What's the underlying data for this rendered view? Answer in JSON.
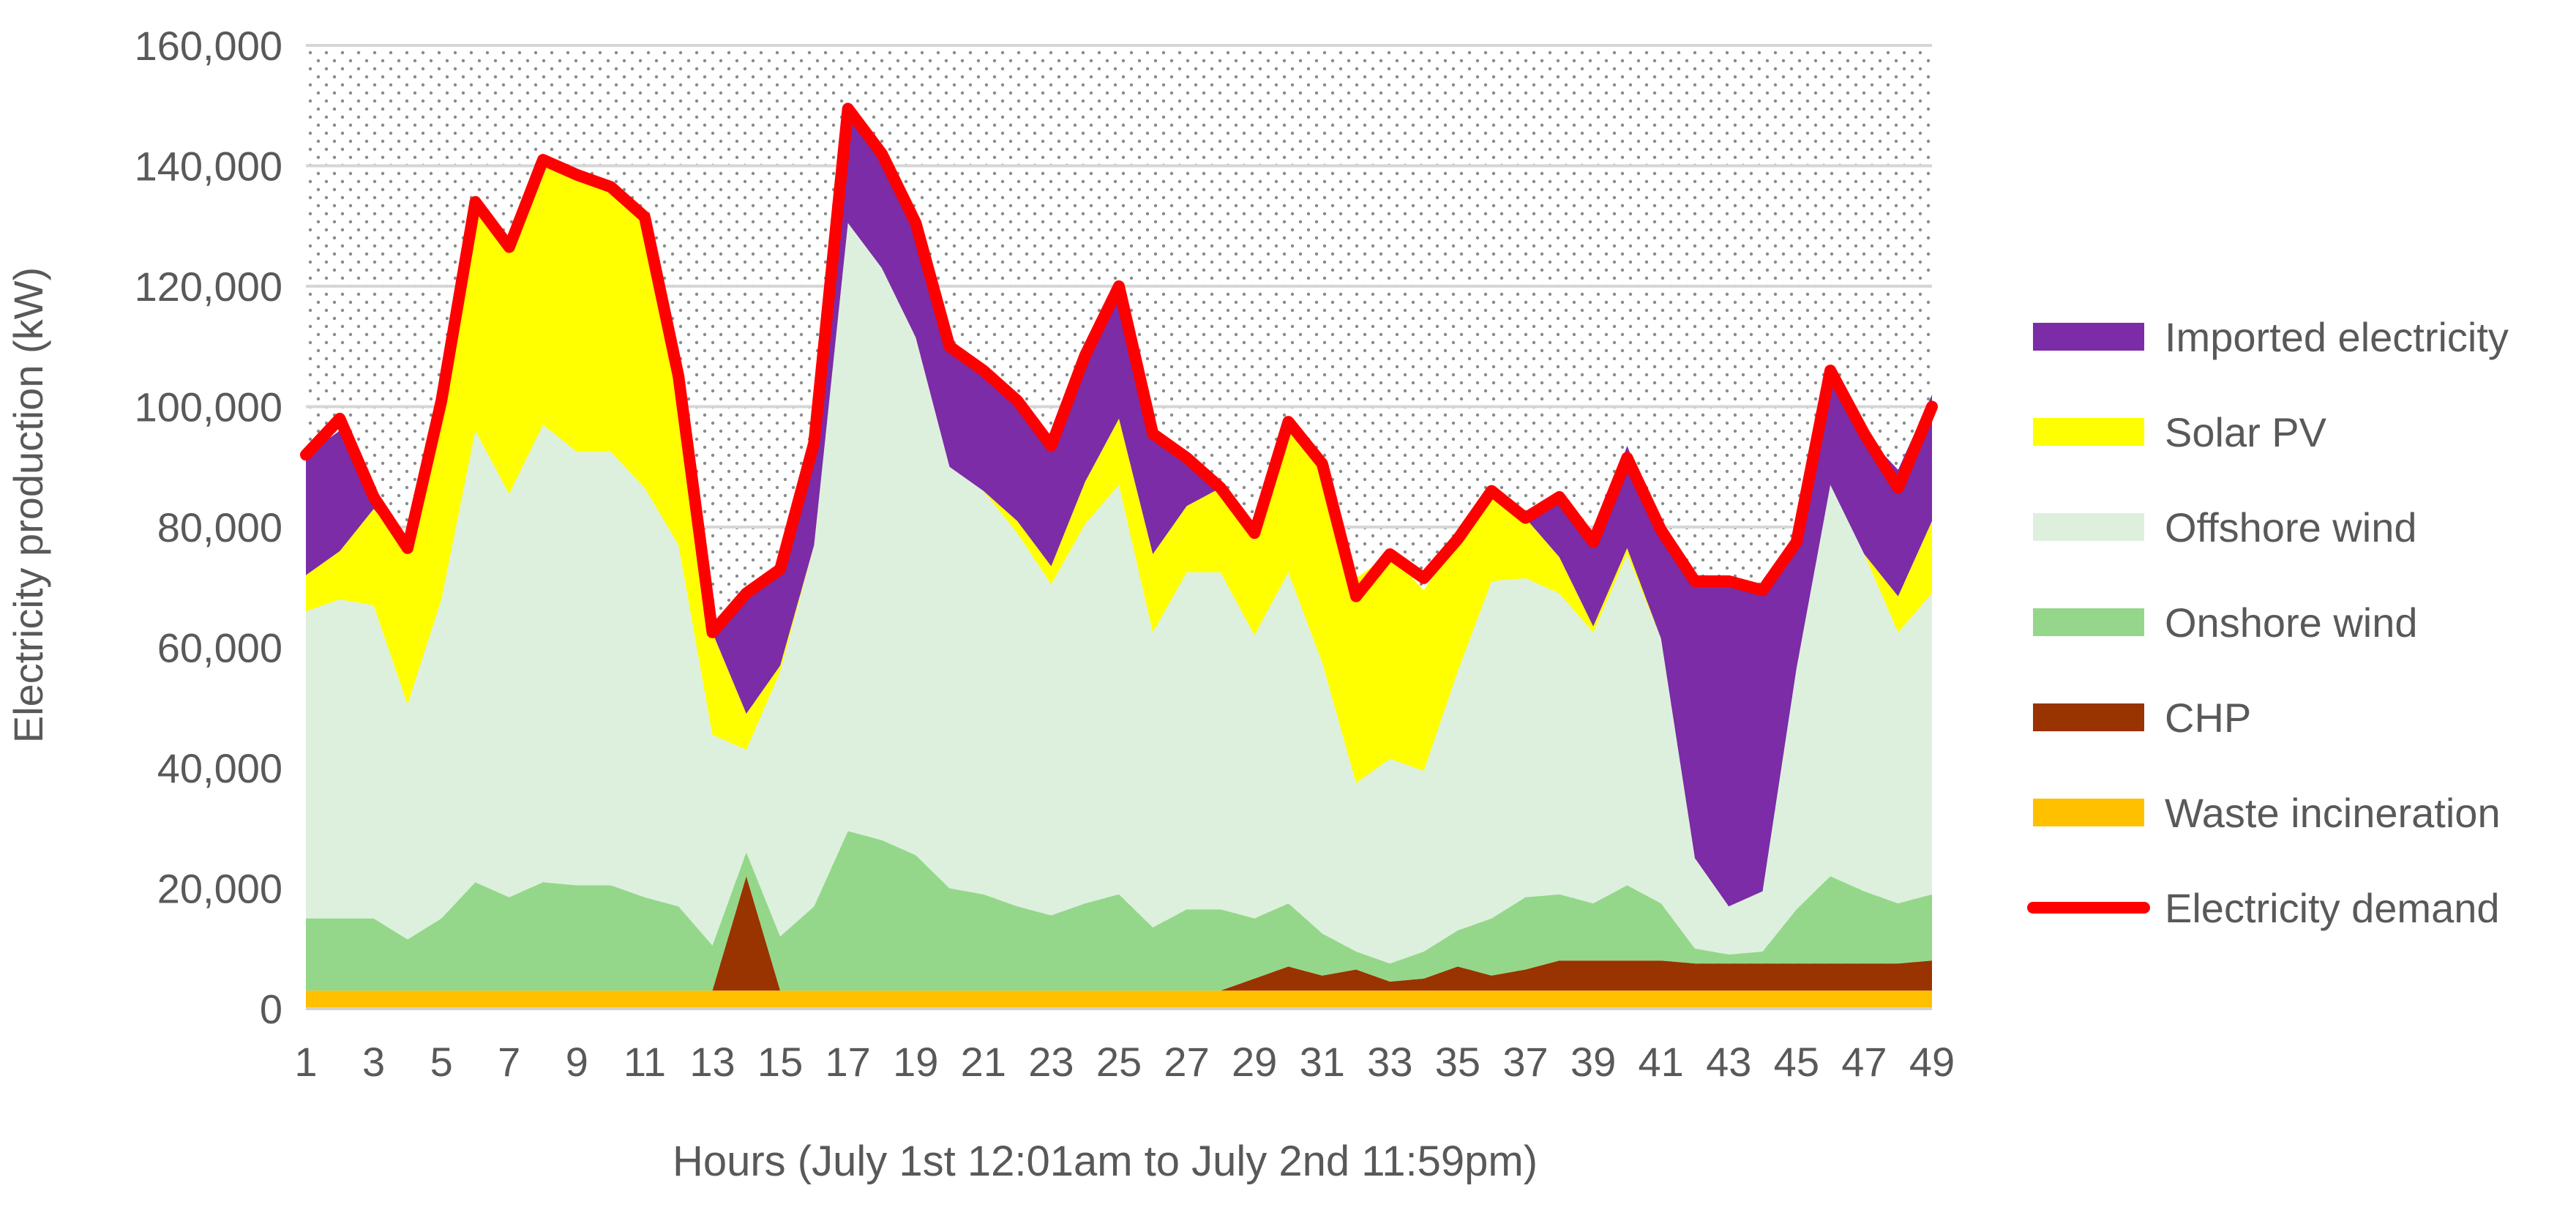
{
  "chart_data": {
    "type": "area",
    "title": "",
    "xlabel": "Hours (July 1st 12:01am to July 2nd 11:59pm)",
    "ylabel": "Electricity production (kW)",
    "ylim": [
      0,
      160000
    ],
    "yticks": [
      "0",
      "20,000",
      "40,000",
      "60,000",
      "80,000",
      "100,000",
      "120,000",
      "140,000",
      "160,000"
    ],
    "xticks": [
      "1",
      "3",
      "5",
      "7",
      "9",
      "11",
      "13",
      "15",
      "17",
      "19",
      "21",
      "23",
      "25",
      "27",
      "29",
      "31",
      "33",
      "35",
      "37",
      "39",
      "41",
      "43",
      "45",
      "47",
      "49"
    ],
    "grid": true,
    "legend_position": "right",
    "x": [
      1,
      2,
      3,
      4,
      5,
      6,
      7,
      8,
      9,
      10,
      11,
      12,
      13,
      14,
      15,
      16,
      17,
      18,
      19,
      20,
      21,
      22,
      23,
      24,
      25,
      26,
      27,
      28,
      29,
      30,
      31,
      32,
      33,
      34,
      35,
      36,
      37,
      38,
      39,
      40,
      41,
      42,
      43,
      44,
      45,
      46,
      47,
      48,
      49
    ],
    "stack_order": [
      "Waste incineration",
      "CHP",
      "Onshore wind",
      "Offshore wind",
      "Solar PV",
      "Imported electricity"
    ],
    "series": [
      {
        "name": "Imported electricity",
        "color": "#7B2CA6",
        "values": [
          20000,
          20000,
          2000,
          0,
          0,
          0,
          0,
          0,
          0,
          0,
          0,
          0,
          0,
          21000,
          16000,
          17000,
          19000,
          19000,
          19000,
          20000,
          20000,
          20000,
          20000,
          21000,
          22000,
          20000,
          8000,
          0,
          0,
          0,
          0,
          0,
          0,
          0,
          0,
          0,
          0,
          11000,
          14000,
          17000,
          18000,
          46000,
          54000,
          50000,
          21000,
          19000,
          20000,
          21000,
          21000
        ]
      },
      {
        "name": "Solar PV",
        "color": "#FFFF00",
        "values": [
          6000,
          8000,
          16000,
          26000,
          33000,
          38000,
          41000,
          44000,
          46000,
          44000,
          45000,
          28000,
          17000,
          6000,
          1000,
          0,
          0,
          0,
          0,
          0,
          0,
          2000,
          3000,
          7000,
          11000,
          13000,
          11000,
          14000,
          17000,
          25000,
          33000,
          34000,
          34000,
          30000,
          22000,
          15000,
          10000,
          6000,
          1000,
          1000,
          0,
          0,
          0,
          0,
          0,
          0,
          0,
          6000,
          12000
        ]
      },
      {
        "name": "Offshore wind",
        "color": "#DDF0DD",
        "values": [
          51000,
          53000,
          52000,
          39000,
          53000,
          75000,
          67000,
          76000,
          72000,
          72000,
          68000,
          60000,
          35000,
          17000,
          44000,
          60000,
          101000,
          95000,
          86000,
          70000,
          67000,
          62000,
          55000,
          63000,
          68000,
          49000,
          56000,
          56000,
          47000,
          55000,
          45000,
          28000,
          34000,
          30000,
          43000,
          56000,
          53000,
          50000,
          45000,
          55000,
          44000,
          15000,
          8000,
          10000,
          40000,
          65000,
          56000,
          45000,
          50000
        ]
      },
      {
        "name": "Onshore wind",
        "color": "#94D78A",
        "values": [
          12000,
          12000,
          12000,
          8500,
          12000,
          18000,
          15500,
          18000,
          17500,
          17500,
          15500,
          14000,
          7500,
          4000,
          9000,
          14000,
          26500,
          25000,
          22500,
          17000,
          16000,
          14000,
          12500,
          14500,
          16000,
          10500,
          13500,
          13500,
          10000,
          10500,
          7000,
          3000,
          3000,
          4500,
          6000,
          9500,
          12000,
          11000,
          9500,
          12500,
          9500,
          2500,
          1500,
          2000,
          9000,
          14500,
          12000,
          10000,
          11000
        ]
      },
      {
        "name": "CHP",
        "color": "#993300",
        "values": [
          0,
          0,
          0,
          0,
          0,
          0,
          0,
          0,
          0,
          0,
          0,
          0,
          0,
          19000,
          0,
          0,
          0,
          0,
          0,
          0,
          0,
          0,
          0,
          0,
          0,
          0,
          0,
          0,
          2000,
          4000,
          2500,
          3500,
          1500,
          2000,
          4000,
          2500,
          3500,
          5000,
          5000,
          5000,
          5000,
          4500,
          4500,
          4500,
          4500,
          4500,
          4500,
          4500,
          5000
        ]
      },
      {
        "name": "Waste incineration",
        "color": "#FFC000",
        "values": [
          3000,
          3000,
          3000,
          3000,
          3000,
          3000,
          3000,
          3000,
          3000,
          3000,
          3000,
          3000,
          3000,
          3000,
          3000,
          3000,
          3000,
          3000,
          3000,
          3000,
          3000,
          3000,
          3000,
          3000,
          3000,
          3000,
          3000,
          3000,
          3000,
          3000,
          3000,
          3000,
          3000,
          3000,
          3000,
          3000,
          3000,
          3000,
          3000,
          3000,
          3000,
          3000,
          3000,
          3000,
          3000,
          3000,
          3000,
          3000,
          3000
        ]
      },
      {
        "name": "Electricity demand",
        "color": "#FF0000",
        "kind": "line",
        "values": [
          92000,
          98000,
          85000,
          76500,
          101000,
          134000,
          126500,
          141000,
          138500,
          136500,
          131500,
          105000,
          62500,
          69000,
          73000,
          94000,
          149500,
          142000,
          130500,
          110000,
          106000,
          101000,
          93500,
          108500,
          120000,
          95500,
          91500,
          86500,
          79000,
          97500,
          90500,
          68500,
          75500,
          71500,
          78000,
          86000,
          81500,
          85000,
          77500,
          91500,
          79500,
          71000,
          71000,
          69500,
          77500,
          106000,
          95500,
          86500,
          100000
        ]
      }
    ],
    "legend": [
      {
        "label": "Imported electricity",
        "color": "#7B2CA6",
        "kind": "area"
      },
      {
        "label": "Solar PV",
        "color": "#FFFF00",
        "kind": "area"
      },
      {
        "label": "Offshore wind",
        "color": "#DDF0DD",
        "kind": "area"
      },
      {
        "label": "Onshore wind",
        "color": "#94D78A",
        "kind": "area"
      },
      {
        "label": "CHP",
        "color": "#993300",
        "kind": "area"
      },
      {
        "label": "Waste incineration",
        "color": "#FFC000",
        "kind": "area"
      },
      {
        "label": "Electricity demand",
        "color": "#FF0000",
        "kind": "line"
      }
    ]
  }
}
